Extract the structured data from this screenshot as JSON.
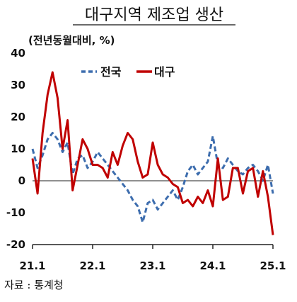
{
  "chart_data": {
    "type": "line",
    "title": "대구지역 제조업 생산",
    "unit_label": "(전년동월대비, %)",
    "source": "자료 : 통계청",
    "ylim": [
      -20,
      40
    ],
    "y_ticks": [
      "40",
      "30",
      "20",
      "10",
      "0",
      "-10",
      "-20"
    ],
    "y_tick_values": [
      40,
      30,
      20,
      10,
      0,
      -10,
      -20
    ],
    "x_ticks": [
      "21.1",
      "22.1",
      "23.1",
      "24.1",
      "25.1"
    ],
    "x_tick_index": [
      0,
      12,
      24,
      36,
      48
    ],
    "x": [
      "21.1",
      "21.2",
      "21.3",
      "21.4",
      "21.5",
      "21.6",
      "21.7",
      "21.8",
      "21.9",
      "21.10",
      "21.11",
      "21.12",
      "22.1",
      "22.2",
      "22.3",
      "22.4",
      "22.5",
      "22.6",
      "22.7",
      "22.8",
      "22.9",
      "22.10",
      "22.11",
      "22.12",
      "23.1",
      "23.2",
      "23.3",
      "23.4",
      "23.5",
      "23.6",
      "23.7",
      "23.8",
      "23.9",
      "23.10",
      "23.11",
      "23.12",
      "24.1",
      "24.2",
      "24.3",
      "24.4",
      "24.5",
      "24.6",
      "24.7",
      "24.8",
      "24.9",
      "24.10",
      "24.11",
      "24.12",
      "25.1"
    ],
    "legend_position": "top",
    "series": [
      {
        "name": "전국",
        "color": "#3d6dae",
        "style": "dashed",
        "values": [
          10,
          4,
          8,
          13,
          15,
          13,
          9,
          12,
          2,
          7,
          8,
          4,
          6,
          9,
          7,
          5,
          3,
          1,
          -1,
          -3,
          -6,
          -8,
          -13,
          -7,
          -6,
          -9,
          -7,
          -5,
          -3,
          -6,
          -2,
          3,
          5,
          2,
          4,
          6,
          14,
          5,
          4,
          7,
          5,
          3,
          2,
          4,
          5,
          3,
          0,
          5,
          -4
        ]
      },
      {
        "name": "대구",
        "color": "#c00000",
        "style": "solid",
        "values": [
          7,
          -4,
          15,
          27,
          34,
          26,
          10,
          19,
          -3,
          5,
          13,
          10,
          5,
          5,
          4,
          1,
          9,
          5,
          11,
          15,
          13,
          6,
          1,
          2,
          12,
          5,
          2,
          1,
          -1,
          -2,
          -7,
          -6,
          -8,
          -5,
          -7,
          -3,
          -8,
          7,
          -6,
          -5,
          4,
          4,
          -4,
          3,
          4,
          -5,
          3,
          -5,
          -17
        ]
      }
    ]
  }
}
